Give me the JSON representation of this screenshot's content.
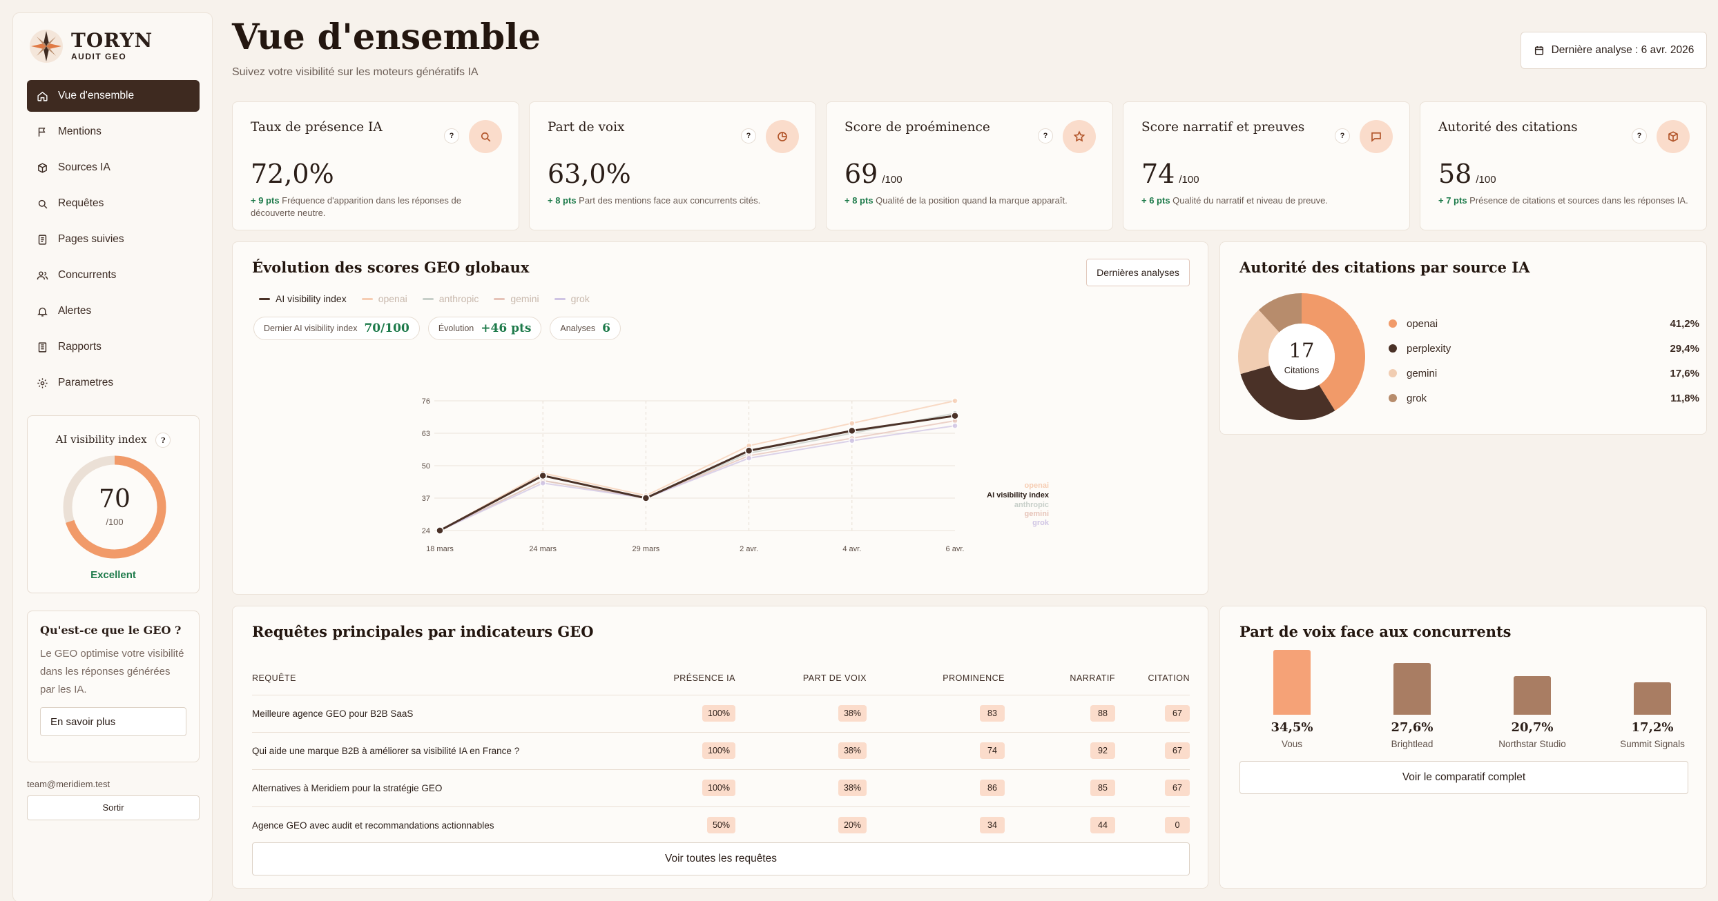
{
  "brand": {
    "name": "TORYN",
    "sub": "AUDIT GEO"
  },
  "nav": [
    {
      "label": "Vue d'ensemble",
      "icon": "home-icon",
      "active": true
    },
    {
      "label": "Mentions",
      "icon": "flag-icon"
    },
    {
      "label": "Sources IA",
      "icon": "box-icon"
    },
    {
      "label": "Requêtes",
      "icon": "search-icon"
    },
    {
      "label": "Pages suivies",
      "icon": "page-icon"
    },
    {
      "label": "Concurrents",
      "icon": "users-icon"
    },
    {
      "label": "Alertes",
      "icon": "bell-icon"
    },
    {
      "label": "Rapports",
      "icon": "report-icon"
    },
    {
      "label": "Parametres",
      "icon": "gear-icon"
    }
  ],
  "score": {
    "title": "AI visibility index",
    "value": "70",
    "max": "/100",
    "fraction": 0.7,
    "label": "Excellent"
  },
  "geo": {
    "title": "Qu'est-ce que le GEO ?",
    "text": "Le GEO optimise votre visibilité dans les réponses générées par les IA.",
    "button": "En savoir plus"
  },
  "user": {
    "email": "team@meridiem.test",
    "logout": "Sortir"
  },
  "header": {
    "title": "Vue d'ensemble",
    "subtitle": "Suivez votre visibilité sur les moteurs génératifs IA",
    "last_analysis": "Dernière analyse : 6 avr. 2026"
  },
  "kpis": [
    {
      "title": "Taux de présence IA",
      "value": "72,0%",
      "unit": "",
      "delta": "+ 9 pts",
      "desc": "Fréquence d'apparition dans les réponses de découverte neutre.",
      "icon": "search-icon"
    },
    {
      "title": "Part de voix",
      "value": "63,0%",
      "unit": "",
      "delta": "+ 8 pts",
      "desc": "Part des mentions face aux concurrents cités.",
      "icon": "pie-icon"
    },
    {
      "title": "Score de proéminence",
      "value": "69",
      "unit": "/100",
      "delta": "+ 8 pts",
      "desc": "Qualité de la position quand la marque apparaît.",
      "icon": "star-icon"
    },
    {
      "title": "Score narratif et preuves",
      "value": "74",
      "unit": "/100",
      "delta": "+ 6 pts",
      "desc": "Qualité du narratif et niveau de preuve.",
      "icon": "chat-icon"
    },
    {
      "title": "Autorité des citations",
      "value": "58",
      "unit": "/100",
      "delta": "+ 7 pts",
      "desc": "Présence de citations et sources dans les réponses IA.",
      "icon": "cube-icon"
    }
  ],
  "evolution": {
    "title": "Évolution des scores GEO globaux",
    "button": "Dernières analyses",
    "pills": [
      {
        "label": "Dernier AI visibility index",
        "value": "70/100"
      },
      {
        "label": "Évolution",
        "value": "+46 pts"
      },
      {
        "label": "Analyses",
        "value": "6"
      }
    ]
  },
  "chart_data": {
    "type": "line",
    "x": [
      "18 mars",
      "24 mars",
      "29 mars",
      "2 avr.",
      "4 avr.",
      "6 avr."
    ],
    "yticks": [
      24,
      37,
      50,
      63,
      76
    ],
    "ylim": [
      24,
      76
    ],
    "series": [
      {
        "name": "AI visibility index",
        "color": "#4a3127",
        "values": [
          24,
          46,
          37,
          56,
          64,
          70
        ]
      },
      {
        "name": "openai",
        "color": "#f6cdb3",
        "values": [
          24,
          47,
          38,
          58,
          67,
          76
        ]
      },
      {
        "name": "anthropic",
        "color": "#c7cfc9",
        "values": [
          24,
          44,
          37,
          55,
          63,
          71
        ]
      },
      {
        "name": "gemini",
        "color": "#e6c3b8",
        "values": [
          24,
          44,
          37,
          54,
          61,
          68
        ]
      },
      {
        "name": "grok",
        "color": "#cfc4e4",
        "values": [
          24,
          43,
          37,
          53,
          60,
          66
        ]
      }
    ]
  },
  "citations": {
    "title": "Autorité des citations par source IA",
    "total": "17",
    "total_label": "Citations",
    "sources": [
      {
        "name": "openai",
        "pct": "41,2%",
        "value": 41.2,
        "color": "#f19a69"
      },
      {
        "name": "perplexity",
        "pct": "29,4%",
        "value": 29.4,
        "color": "#4a3127"
      },
      {
        "name": "gemini",
        "pct": "17,6%",
        "value": 17.6,
        "color": "#f1cdb2"
      },
      {
        "name": "grok",
        "pct": "11,8%",
        "value": 11.8,
        "color": "#b78c6c"
      }
    ]
  },
  "requests": {
    "title": "Requêtes principales par indicateurs GEO",
    "columns": [
      "REQUÊTE",
      "PRÉSENCE IA",
      "PART DE VOIX",
      "PROMINENCE",
      "NARRATIF",
      "CITATION"
    ],
    "rows": [
      [
        "Meilleure agence GEO pour B2B SaaS",
        "100%",
        "38%",
        "83",
        "88",
        "67"
      ],
      [
        "Qui aide une marque B2B à améliorer sa visibilité IA en France ?",
        "100%",
        "38%",
        "74",
        "92",
        "67"
      ],
      [
        "Alternatives à Meridiem pour la stratégie GEO",
        "100%",
        "38%",
        "86",
        "85",
        "67"
      ],
      [
        "Agence GEO avec audit et recommandations actionnables",
        "50%",
        "20%",
        "34",
        "44",
        "0"
      ]
    ],
    "button": "Voir toutes les requêtes"
  },
  "sov": {
    "title": "Part de voix face aux concurrents",
    "items": [
      {
        "name": "Vous",
        "pct": "34,5%",
        "value": 34.5,
        "color": "#f5a277"
      },
      {
        "name": "Brightlead",
        "pct": "27,6%",
        "value": 27.6,
        "color": "#a97d63"
      },
      {
        "name": "Northstar Studio",
        "pct": "20,7%",
        "value": 20.7,
        "color": "#a97d63"
      },
      {
        "name": "Summit Signals",
        "pct": "17,2%",
        "value": 17.2,
        "color": "#a97d63"
      }
    ],
    "button": "Voir le comparatif complet"
  }
}
